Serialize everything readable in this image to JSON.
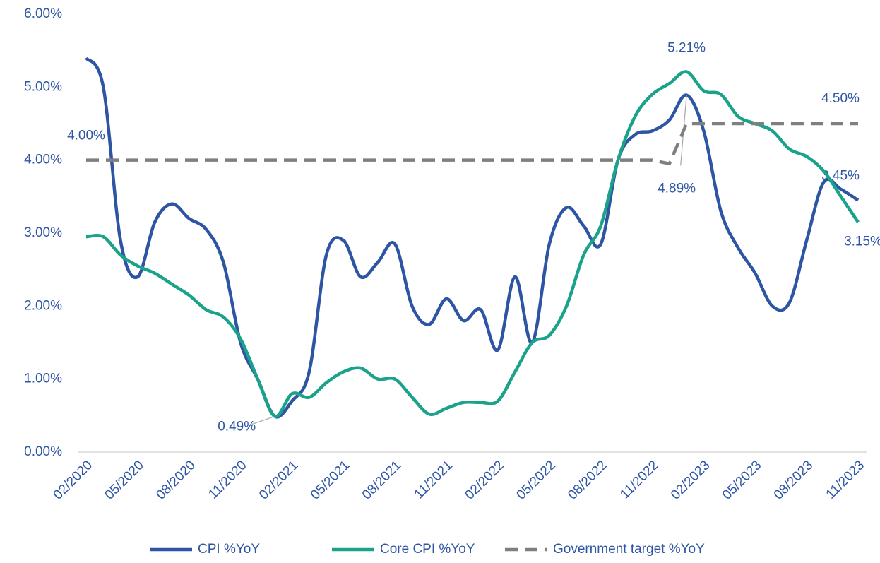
{
  "chart_data": {
    "type": "line",
    "categories": [
      "02/2020",
      null,
      null,
      "05/2020",
      null,
      null,
      "08/2020",
      null,
      null,
      "11/2020",
      null,
      null,
      "02/2021",
      null,
      null,
      "05/2021",
      null,
      null,
      "08/2021",
      null,
      null,
      "11/2021",
      null,
      null,
      "02/2022",
      null,
      null,
      "05/2022",
      null,
      null,
      "08/2022",
      null,
      null,
      "11/2022",
      null,
      null,
      "02/2023",
      null,
      null,
      "05/2023",
      null,
      null,
      "08/2023",
      null,
      null,
      "11/2023"
    ],
    "series": [
      {
        "name": "CPI %YoY",
        "color": "#2e55a4",
        "dash": false,
        "values": [
          5.4,
          5.0,
          2.9,
          2.4,
          3.15,
          3.4,
          3.2,
          3.05,
          2.6,
          1.5,
          1.0,
          0.49,
          0.7,
          1.1,
          2.7,
          2.9,
          2.4,
          2.6,
          2.85,
          2.0,
          1.75,
          2.1,
          1.8,
          1.95,
          1.4,
          2.4,
          1.5,
          2.85,
          3.35,
          3.1,
          2.85,
          4.0,
          4.35,
          4.4,
          4.55,
          4.89,
          4.4,
          3.3,
          2.8,
          2.45,
          2.0,
          2.05,
          2.9,
          3.7,
          3.6,
          3.45
        ],
        "value_labels": [
          null,
          null,
          null,
          null,
          null,
          null,
          null,
          null,
          null,
          null,
          null,
          "0.49%",
          null,
          null,
          null,
          null,
          null,
          null,
          null,
          null,
          null,
          null,
          null,
          null,
          null,
          null,
          null,
          null,
          null,
          null,
          null,
          null,
          null,
          null,
          null,
          "4.89%",
          null,
          null,
          null,
          null,
          null,
          null,
          null,
          null,
          null,
          "3.45%"
        ]
      },
      {
        "name": "Core CPI %YoY",
        "color": "#1aa38a",
        "dash": false,
        "values": [
          2.95,
          2.95,
          2.7,
          2.55,
          2.45,
          2.3,
          2.15,
          1.95,
          1.85,
          1.55,
          1.0,
          0.49,
          0.8,
          0.75,
          0.95,
          1.1,
          1.15,
          1.0,
          1.0,
          0.75,
          0.52,
          0.6,
          0.68,
          0.68,
          0.7,
          1.1,
          1.5,
          1.6,
          2.0,
          2.7,
          3.1,
          4.0,
          4.6,
          4.9,
          5.05,
          5.21,
          4.95,
          4.9,
          4.6,
          4.5,
          4.4,
          4.15,
          4.05,
          3.85,
          3.5,
          3.15
        ],
        "value_labels": [
          null,
          null,
          null,
          null,
          null,
          null,
          null,
          null,
          null,
          null,
          null,
          null,
          null,
          null,
          null,
          null,
          null,
          null,
          null,
          null,
          null,
          null,
          null,
          null,
          null,
          null,
          null,
          null,
          null,
          null,
          null,
          null,
          null,
          null,
          null,
          "5.21%",
          null,
          null,
          null,
          null,
          null,
          null,
          null,
          null,
          null,
          "3.15%"
        ]
      },
      {
        "name": "Government target %YoY",
        "color": "#7f7f7f",
        "dash": true,
        "values": [
          4,
          4,
          4,
          4,
          4,
          4,
          4,
          4,
          4,
          4,
          4,
          4,
          4,
          4,
          4,
          4,
          4,
          4,
          4,
          4,
          4,
          4,
          4,
          4,
          4,
          4,
          4,
          4,
          4,
          4,
          4,
          4,
          4,
          4,
          3.95,
          4.5,
          4.5,
          4.5,
          4.5,
          4.5,
          4.5,
          4.5,
          4.5,
          4.5,
          4.5,
          4.5
        ],
        "value_labels": [
          "4.00%",
          null,
          null,
          null,
          null,
          null,
          null,
          null,
          null,
          null,
          null,
          null,
          null,
          null,
          null,
          null,
          null,
          null,
          null,
          null,
          null,
          null,
          null,
          null,
          null,
          null,
          null,
          null,
          null,
          null,
          null,
          null,
          null,
          null,
          null,
          null,
          null,
          null,
          null,
          null,
          null,
          null,
          null,
          null,
          null,
          "4.50%"
        ]
      }
    ],
    "ylim": [
      0,
      6
    ],
    "yticks": [
      {
        "value": 0,
        "label": "0.00%"
      },
      {
        "value": 1,
        "label": "1.00%"
      },
      {
        "value": 2,
        "label": "2.00%"
      },
      {
        "value": 3,
        "label": "3.00%"
      },
      {
        "value": 4,
        "label": "4.00%"
      },
      {
        "value": 5,
        "label": "5.00%"
      },
      {
        "value": 6,
        "label": "6.00%"
      }
    ],
    "grid": false,
    "legend": "bottom"
  }
}
